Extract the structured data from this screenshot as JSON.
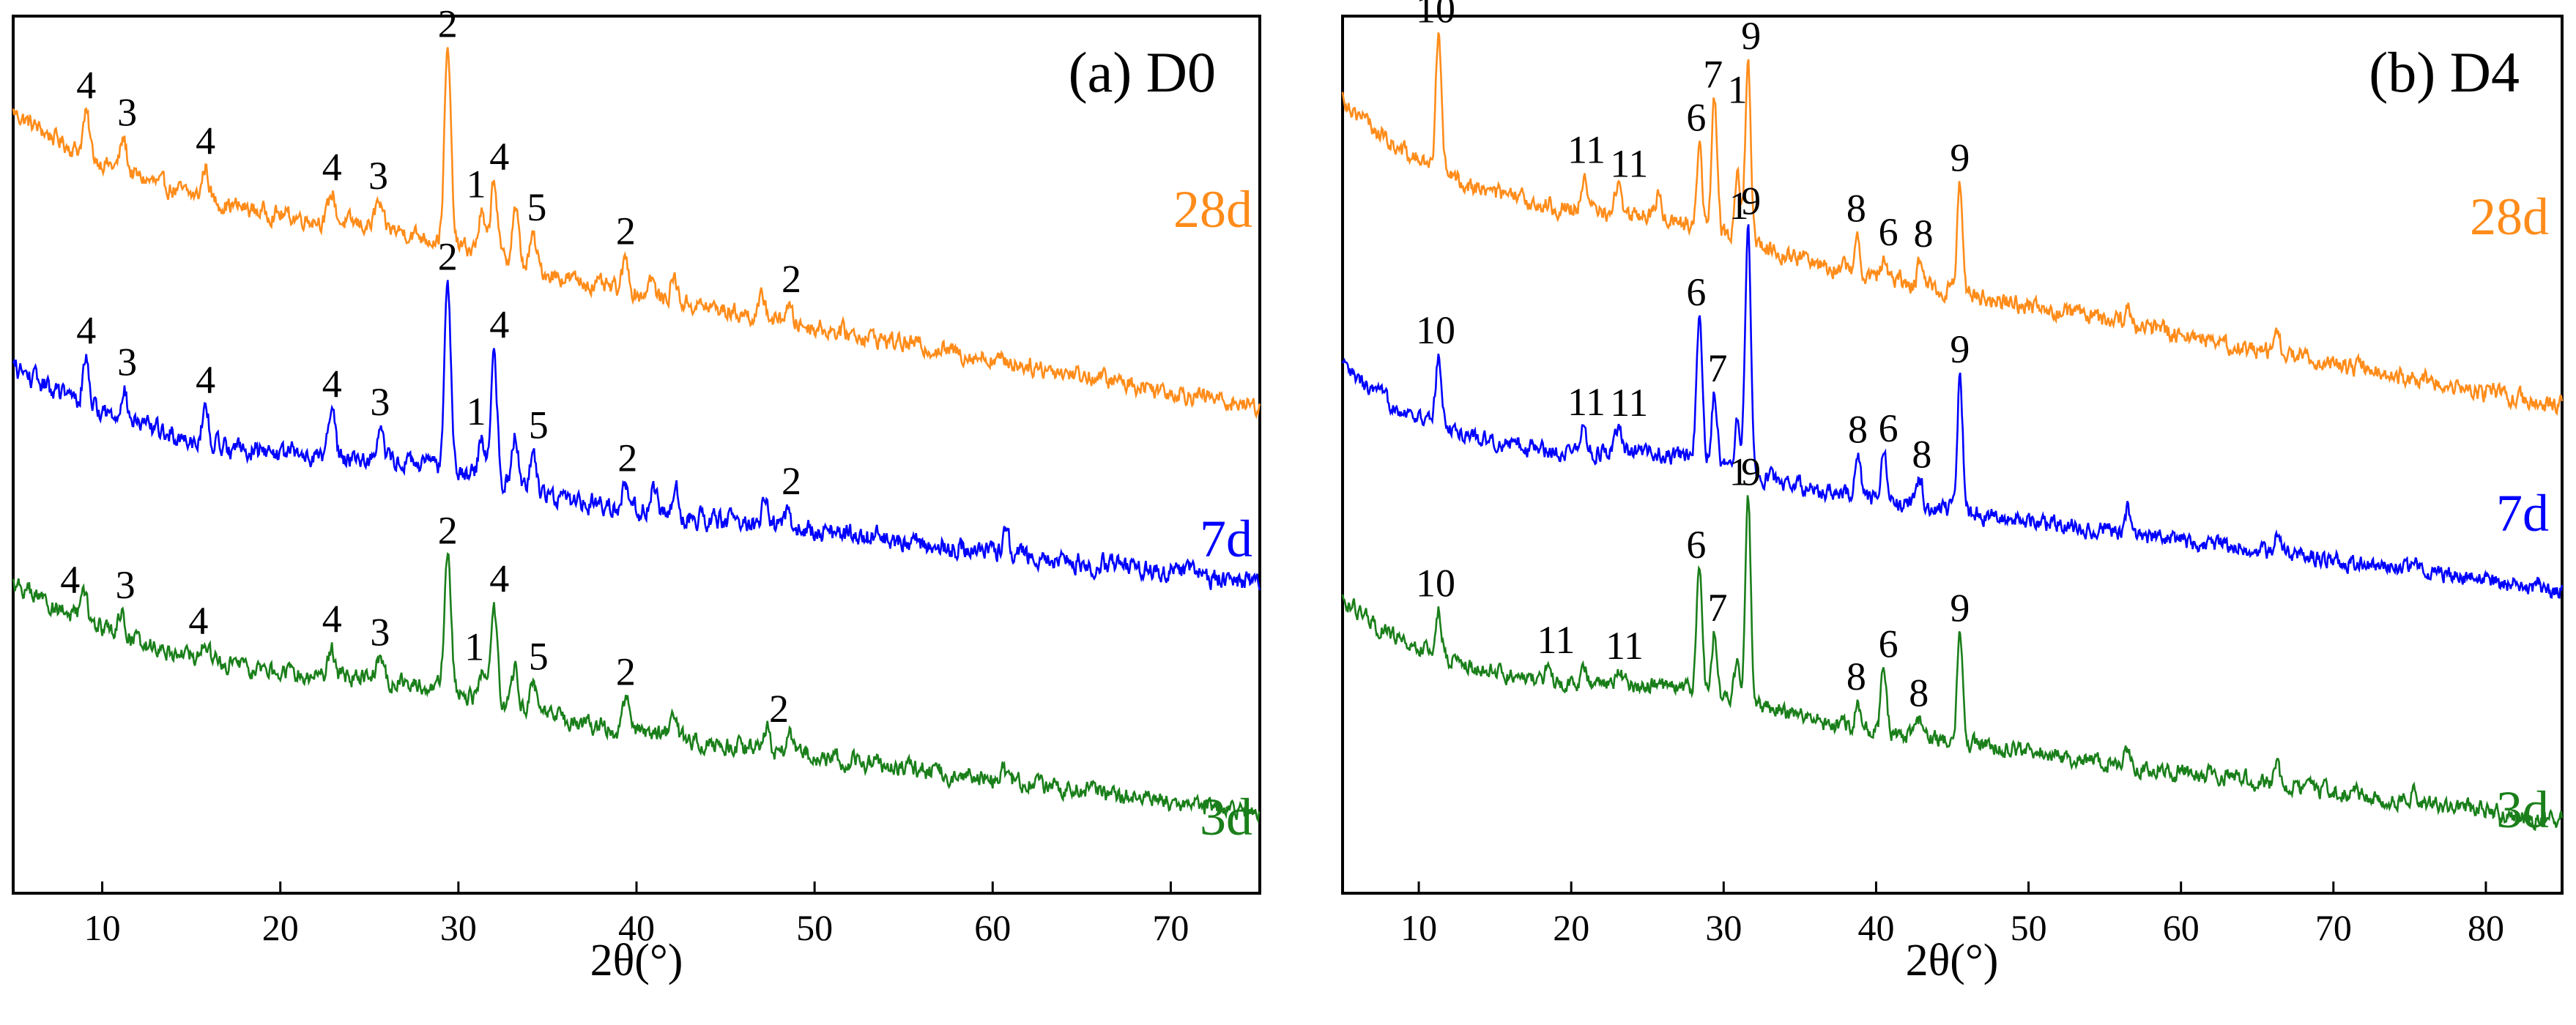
{
  "chart_data": [
    {
      "type": "line",
      "panel_title": "(a) D0",
      "xlabel": "2θ(°)",
      "ylabel": "",
      "xlim": [
        5,
        75
      ],
      "x_ticks": [
        10,
        20,
        30,
        40,
        50,
        60,
        70
      ],
      "x_tick_labels": [
        "10",
        "20",
        "30",
        "40",
        "50",
        "60",
        "70"
      ],
      "y_ticks_visible": false,
      "series": [
        {
          "name": "28d",
          "color": "#ff8c1a",
          "baseline_start": 83.0,
          "baseline_end": 55.0,
          "decay": 0.13,
          "rise": 9.0,
          "noise": 1.6,
          "peaks": [
            [
              9.1,
              5
            ],
            [
              11.2,
              4
            ],
            [
              15.8,
              4
            ],
            [
              22.9,
              3.5
            ],
            [
              25.5,
              3
            ],
            [
              29.4,
              24
            ],
            [
              31.3,
              5
            ],
            [
              32.0,
              10
            ],
            [
              33.2,
              7
            ],
            [
              34.2,
              4
            ],
            [
              39.4,
              4
            ],
            [
              40.8,
              2.5
            ],
            [
              42.1,
              3
            ],
            [
              47.1,
              2.5
            ],
            [
              48.5,
              2
            ]
          ],
          "annotations": [
            {
              "x": 9.1,
              "label": "4"
            },
            {
              "x": 11.4,
              "label": "3"
            },
            {
              "x": 15.8,
              "label": "4"
            },
            {
              "x": 22.9,
              "label": "4"
            },
            {
              "x": 25.5,
              "label": "3"
            },
            {
              "x": 29.4,
              "label": "2"
            },
            {
              "x": 31.0,
              "label": "1"
            },
            {
              "x": 32.3,
              "label": "4"
            },
            {
              "x": 34.4,
              "label": "5"
            },
            {
              "x": 39.4,
              "label": "2"
            },
            {
              "x": 48.7,
              "label": "2"
            }
          ]
        },
        {
          "name": "7d",
          "color": "#0000ff",
          "baseline_start": 51.0,
          "baseline_end": 33.0,
          "decay": 0.13,
          "rise": 9.0,
          "noise": 1.8,
          "peaks": [
            [
              9.1,
              6
            ],
            [
              11.2,
              4
            ],
            [
              15.8,
              4
            ],
            [
              22.9,
              6
            ],
            [
              25.6,
              4
            ],
            [
              29.4,
              24
            ],
            [
              31.3,
              5
            ],
            [
              32.0,
              16
            ],
            [
              33.2,
              7
            ],
            [
              34.2,
              5
            ],
            [
              39.4,
              3
            ],
            [
              41.0,
              3
            ],
            [
              42.2,
              3
            ],
            [
              47.2,
              3
            ],
            [
              48.5,
              2
            ],
            [
              60.7,
              2
            ]
          ],
          "annotations": [
            {
              "x": 9.1,
              "label": "4"
            },
            {
              "x": 11.4,
              "label": "3"
            },
            {
              "x": 15.8,
              "label": "4"
            },
            {
              "x": 22.9,
              "label": "4"
            },
            {
              "x": 25.6,
              "label": "3"
            },
            {
              "x": 29.4,
              "label": "2"
            },
            {
              "x": 31.0,
              "label": "1"
            },
            {
              "x": 32.3,
              "label": "4"
            },
            {
              "x": 34.5,
              "label": "5"
            },
            {
              "x": 39.5,
              "label": "2"
            },
            {
              "x": 48.7,
              "label": "2"
            }
          ]
        },
        {
          "name": "3d",
          "color": "#1a7f1a",
          "baseline_start": 24.0,
          "baseline_end": 4.0,
          "decay": 0.13,
          "rise": 9.0,
          "noise": 1.6,
          "peaks": [
            [
              9.0,
              3
            ],
            [
              11.1,
              3
            ],
            [
              15.8,
              2
            ],
            [
              22.9,
              3
            ],
            [
              25.6,
              3
            ],
            [
              29.4,
              18
            ],
            [
              31.3,
              4
            ],
            [
              32.0,
              12
            ],
            [
              33.2,
              5
            ],
            [
              34.2,
              4
            ],
            [
              39.4,
              4
            ],
            [
              42.1,
              3
            ],
            [
              47.3,
              3
            ],
            [
              48.6,
              2
            ],
            [
              60.6,
              1.5
            ]
          ],
          "annotations": [
            {
              "x": 8.2,
              "label": "4"
            },
            {
              "x": 11.3,
              "label": "3"
            },
            {
              "x": 15.4,
              "label": "4"
            },
            {
              "x": 22.9,
              "label": "4"
            },
            {
              "x": 25.6,
              "label": "3"
            },
            {
              "x": 29.4,
              "label": "2"
            },
            {
              "x": 30.9,
              "label": "1"
            },
            {
              "x": 32.3,
              "label": "4"
            },
            {
              "x": 34.5,
              "label": "5"
            },
            {
              "x": 39.4,
              "label": "2"
            },
            {
              "x": 48.0,
              "label": "2"
            }
          ]
        }
      ]
    },
    {
      "type": "line",
      "panel_title": "(b) D4",
      "xlabel": "2θ(°)",
      "ylabel": "",
      "xlim": [
        5,
        85
      ],
      "x_ticks": [
        10,
        20,
        30,
        40,
        50,
        60,
        70,
        80
      ],
      "x_tick_labels": [
        "10",
        "20",
        "30",
        "40",
        "50",
        "60",
        "70",
        "80"
      ],
      "y_ticks_visible": false,
      "series": [
        {
          "name": "28d",
          "color": "#ff8c1a",
          "baseline_start": 84.0,
          "baseline_end": 55.0,
          "decay": 0.2,
          "rise": 10.0,
          "noise": 1.6,
          "peaks": [
            [
              11.3,
              18
            ],
            [
              20.8,
              4
            ],
            [
              23.1,
              4
            ],
            [
              25.7,
              3
            ],
            [
              28.4,
              10
            ],
            [
              29.4,
              16
            ],
            [
              30.9,
              8
            ],
            [
              31.6,
              22
            ],
            [
              38.8,
              4
            ],
            [
              40.5,
              2
            ],
            [
              42.9,
              3
            ],
            [
              45.5,
              14
            ],
            [
              56.5,
              2
            ],
            [
              66.3,
              2
            ]
          ],
          "annotations": [
            {
              "x": 11.1,
              "label": "10"
            },
            {
              "x": 21.0,
              "label": "11"
            },
            {
              "x": 23.8,
              "label": "11"
            },
            {
              "x": 28.2,
              "label": "6"
            },
            {
              "x": 29.3,
              "label": "7"
            },
            {
              "x": 30.9,
              "label": "1"
            },
            {
              "x": 31.8,
              "label": "9"
            },
            {
              "x": 38.7,
              "label": "8"
            },
            {
              "x": 40.8,
              "label": "6"
            },
            {
              "x": 43.1,
              "label": "8"
            },
            {
              "x": 45.5,
              "label": "9"
            }
          ]
        },
        {
          "name": "7d",
          "color": "#0000ff",
          "baseline_start": 52.0,
          "baseline_end": 32.0,
          "decay": 0.2,
          "rise": 8.0,
          "noise": 1.5,
          "peaks": [
            [
              11.3,
              9
            ],
            [
              20.8,
              3
            ],
            [
              23.1,
              3
            ],
            [
              28.4,
              18
            ],
            [
              29.4,
              9
            ],
            [
              30.9,
              6
            ],
            [
              31.6,
              32
            ],
            [
              38.8,
              5
            ],
            [
              40.5,
              7
            ],
            [
              42.9,
              3
            ],
            [
              45.5,
              17
            ],
            [
              56.5,
              3
            ],
            [
              66.3,
              3
            ],
            [
              75.3,
              2
            ]
          ],
          "annotations": [
            {
              "x": 11.1,
              "label": "10"
            },
            {
              "x": 21.0,
              "label": "11"
            },
            {
              "x": 23.8,
              "label": "11"
            },
            {
              "x": 28.2,
              "label": "6"
            },
            {
              "x": 29.6,
              "label": "7"
            },
            {
              "x": 31.0,
              "label": "1"
            },
            {
              "x": 31.8,
              "label": "9"
            },
            {
              "x": 38.8,
              "label": "8"
            },
            {
              "x": 40.8,
              "label": "6"
            },
            {
              "x": 43.0,
              "label": "8"
            },
            {
              "x": 45.5,
              "label": "9"
            }
          ]
        },
        {
          "name": "3d",
          "color": "#1a7f1a",
          "baseline_start": 23.0,
          "baseline_end": 3.0,
          "decay": 0.2,
          "rise": 8.0,
          "noise": 1.5,
          "peaks": [
            [
              11.3,
              6
            ],
            [
              18.5,
              2
            ],
            [
              20.8,
              2
            ],
            [
              23.1,
              2
            ],
            [
              28.4,
              15
            ],
            [
              29.4,
              8
            ],
            [
              30.9,
              5
            ],
            [
              31.6,
              26
            ],
            [
              38.8,
              3
            ],
            [
              40.5,
              8
            ],
            [
              42.9,
              2
            ],
            [
              45.5,
              14
            ],
            [
              56.5,
              2
            ],
            [
              66.3,
              2
            ],
            [
              75.3,
              1.5
            ]
          ],
          "annotations": [
            {
              "x": 11.1,
              "label": "10"
            },
            {
              "x": 19.0,
              "label": "11"
            },
            {
              "x": 23.5,
              "label": "11"
            },
            {
              "x": 28.2,
              "label": "6"
            },
            {
              "x": 29.6,
              "label": "7"
            },
            {
              "x": 31.0,
              "label": "1"
            },
            {
              "x": 31.8,
              "label": "9"
            },
            {
              "x": 38.7,
              "label": "8"
            },
            {
              "x": 40.8,
              "label": "6"
            },
            {
              "x": 42.8,
              "label": "8"
            },
            {
              "x": 45.5,
              "label": "9"
            }
          ]
        }
      ]
    }
  ]
}
